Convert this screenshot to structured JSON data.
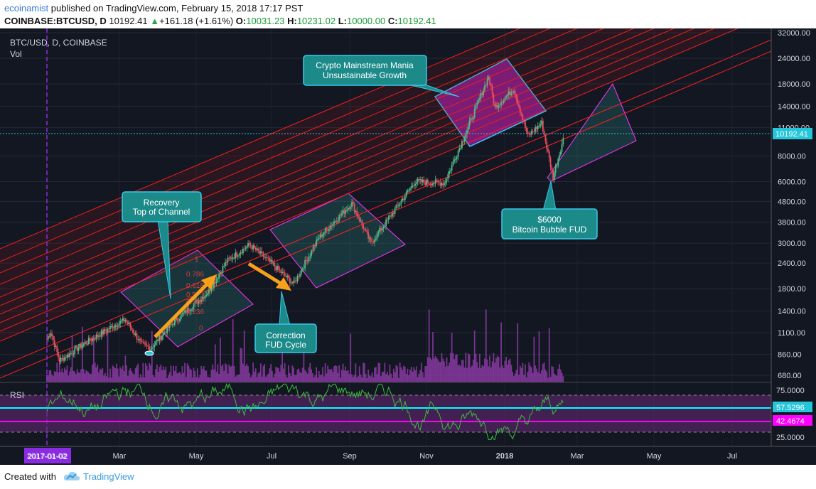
{
  "header": {
    "author": "ecoinamist",
    "published": "published on TradingView.com, February 15, 2018 17:17 PST",
    "symbol": "COINBASE:BTCUSD, D",
    "last": "10192.41",
    "arrow": "▲",
    "change": "+161.18 (+1.61%)",
    "o_label": "O:",
    "o_value": "10031.23",
    "h_label": "H:",
    "h_value": "10231.02",
    "l_label": "L:",
    "l_value": "10000.00",
    "c_label": "C:",
    "c_value": "10192.41"
  },
  "pane": {
    "title": "BTC/USD, D, COINBASE",
    "vol_label": "Vol",
    "rsi_label": "RSI"
  },
  "annotations": {
    "mania_1": "Crypto Mainstream Mania",
    "mania_2": "Unsustainable Growth",
    "recovery_1": "Recovery",
    "recovery_2": "Top of Channel",
    "correction_1": "Correction",
    "correction_2": "FUD Cycle",
    "fud_1": "$6000",
    "fud_2": "Bitcoin Bubble FUD"
  },
  "fib_labels": [
    "1",
    "0.786",
    "0.618",
    "0.5",
    "0.382",
    "0.236",
    "0"
  ],
  "colors": {
    "background": "#131722",
    "up": "#53b987",
    "down": "#eb4d5c",
    "channel": "#ff1f1f",
    "rsi": "#3dbb3d",
    "price_line": "#26c6da",
    "magenta": "#ff00ff",
    "cyan": "#00ffff",
    "volume": "#9b3fb5",
    "orange": "#f7a01b",
    "annotation_fill": "#1d8a8a",
    "mania_fill": "#7b1f8c"
  },
  "footer": {
    "created": "Created with",
    "brand": "TradingView"
  },
  "chart_data": {
    "type": "candlestick",
    "title": "BTC/USD, D, COINBASE",
    "price_axis_ticks": [
      32000,
      24000,
      18000,
      14000,
      11000,
      8000,
      6000,
      4800,
      3800,
      3000,
      2400,
      1800,
      1400,
      1100,
      860,
      680
    ],
    "price_axis_scale": "log",
    "time_axis_ticks": [
      "2017-01-02",
      "Mar",
      "May",
      "Jul",
      "Sep",
      "Nov",
      "2018",
      "Mar",
      "May",
      "Jul"
    ],
    "current_price": "10192.41",
    "price_series": [
      {
        "date": "2017-01-02",
        "close": 1020
      },
      {
        "date": "2017-01-05",
        "close": 1110
      },
      {
        "date": "2017-01-12",
        "close": 800
      },
      {
        "date": "2017-01-31",
        "close": 965
      },
      {
        "date": "2017-02-23",
        "close": 1180
      },
      {
        "date": "2017-03-05",
        "close": 1270
      },
      {
        "date": "2017-03-18",
        "close": 960
      },
      {
        "date": "2017-03-25",
        "close": 920
      },
      {
        "date": "2017-04-10",
        "close": 1200
      },
      {
        "date": "2017-05-10",
        "close": 1750
      },
      {
        "date": "2017-05-24",
        "close": 2450
      },
      {
        "date": "2017-06-11",
        "close": 2950
      },
      {
        "date": "2017-06-25",
        "close": 2500
      },
      {
        "date": "2017-07-16",
        "close": 1900
      },
      {
        "date": "2017-08-05",
        "close": 3200
      },
      {
        "date": "2017-08-31",
        "close": 4700
      },
      {
        "date": "2017-09-15",
        "close": 3000
      },
      {
        "date": "2017-10-20",
        "close": 6000
      },
      {
        "date": "2017-11-12",
        "close": 5900
      },
      {
        "date": "2017-11-28",
        "close": 10000
      },
      {
        "date": "2017-12-17",
        "close": 19500
      },
      {
        "date": "2017-12-22",
        "close": 13800
      },
      {
        "date": "2018-01-06",
        "close": 17000
      },
      {
        "date": "2018-01-17",
        "close": 10000
      },
      {
        "date": "2018-01-28",
        "close": 11600
      },
      {
        "date": "2018-02-06",
        "close": 6300
      },
      {
        "date": "2018-02-15",
        "close": 10192
      }
    ],
    "rsi_axis_ticks": [
      "75.0000",
      "57.5296",
      "42.4674",
      "25.0000"
    ],
    "rsi_current": [
      57.5296,
      42.4674
    ],
    "rsi_bounds": [
      70,
      30
    ]
  }
}
